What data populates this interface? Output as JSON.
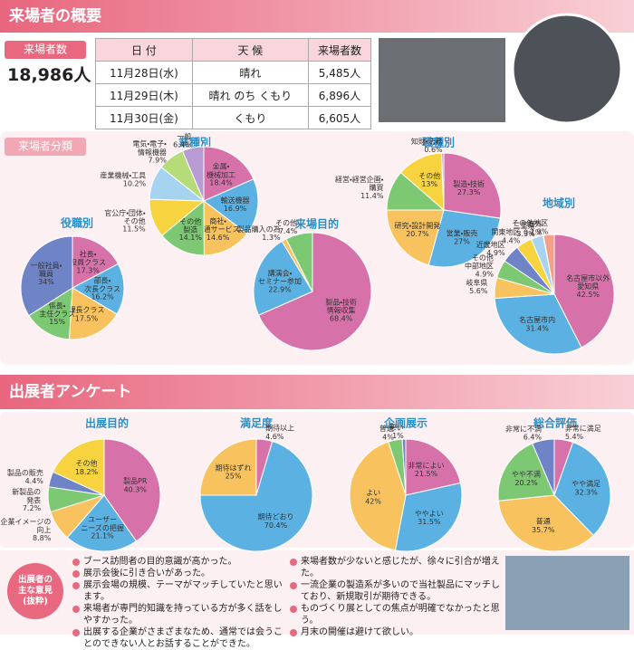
{
  "sections": {
    "overview_title": "来場者の概要",
    "visitor_count_label": "来場者数",
    "visitor_count": "18,986人",
    "classification_label": "来場者分類",
    "survey_title": "出展者アンケート",
    "opinions_label": "出展者の\n主な意見\n(抜粋)"
  },
  "table": {
    "header": [
      "日 付",
      "天 候",
      "来場者数"
    ],
    "rows": [
      [
        "11月28日(水)",
        "晴れ",
        "5,485人"
      ],
      [
        "11月29日(木)",
        "晴れ のち くもり",
        "6,896人"
      ],
      [
        "11月30日(金)",
        "くもり",
        "6,605人"
      ]
    ]
  },
  "chart_data": [
    {
      "type": "pie",
      "title": "業種別",
      "categories": [
        "金属・\n機械加工",
        "輸送機器",
        "商社・\n流通サービス",
        "その他\n製造",
        "官公庁・団体・\nその他",
        "産業機械・工具",
        "電気・電子・\n情報機器",
        "一般"
      ],
      "values": [
        18.4,
        16.9,
        14.6,
        14.1,
        11.5,
        10.2,
        7.9,
        6.4
      ],
      "value_labels": [
        "18.4%",
        "16.9%",
        "14.6%",
        "14.1%",
        "11.5%",
        "10.2%",
        "7.9%",
        "6.4%"
      ],
      "colors": [
        "#d672a9",
        "#5cb1e3",
        "#f8c25e",
        "#7cc873",
        "#f6d33f",
        "#a6d4f0",
        "#b6dc7a",
        "#b89ad4"
      ]
    },
    {
      "type": "pie",
      "title": "役職別",
      "categories": [
        "社長・\n役員クラス",
        "部長・\n次長クラス",
        "課長クラス",
        "係長・\n主任クラス",
        "一般社員・\n職員"
      ],
      "values": [
        17.3,
        16.2,
        17.5,
        15,
        34
      ],
      "value_labels": [
        "17.3%",
        "16.2%",
        "17.5%",
        "15%",
        "34%"
      ],
      "colors": [
        "#d672a9",
        "#5cb1e3",
        "#f8c25e",
        "#7cc873",
        "#6f84c6"
      ]
    },
    {
      "type": "pie",
      "title": "来場目的",
      "categories": [
        "製品・技術\n情報収集",
        "講演会・\nセミナー参加",
        "製品購入の為",
        "その他"
      ],
      "values": [
        68.4,
        22.9,
        1.3,
        7.4
      ],
      "value_labels": [
        "68.4%",
        "22.9%",
        "1.3%",
        "7.4%"
      ],
      "colors": [
        "#d672a9",
        "#5cb1e3",
        "#f8c25e",
        "#7cc873"
      ]
    },
    {
      "type": "pie",
      "title": "職種別",
      "categories": [
        "製造・技術",
        "営業・販売",
        "研究・設計開発",
        "経営・経営企画・\n購買",
        "その他",
        "知財・法務"
      ],
      "values": [
        27.3,
        27,
        20.7,
        11.4,
        13,
        0.6
      ],
      "value_labels": [
        "27.3%",
        "27%",
        "20.7%",
        "11.4%",
        "13%",
        "0.6%"
      ],
      "colors": [
        "#d672a9",
        "#5cb1e3",
        "#f8c25e",
        "#7cc873",
        "#f6d33f",
        "#b89ad4"
      ]
    },
    {
      "type": "pie",
      "title": "地域別",
      "categories": [
        "名古屋市以外\n愛知県",
        "名古屋市内",
        "岐阜県",
        "その他\n中部地区",
        "近畿地区",
        "関東地区",
        "三重県",
        "海外",
        "その他地区"
      ],
      "values": [
        42.5,
        31.4,
        5.6,
        4.9,
        4.9,
        4.4,
        3.3,
        0.1,
        2.9
      ],
      "value_labels": [
        "42.5%",
        "31.4%",
        "5.6%",
        "4.9%",
        "4.9%",
        "4.4%",
        "3.3%",
        "0.1%",
        "2.9%"
      ],
      "colors": [
        "#d672a9",
        "#5cb1e3",
        "#f8c25e",
        "#7cc873",
        "#6f84c6",
        "#f6d33f",
        "#a6d4f0",
        "#b89ad4",
        "#f3a08a"
      ]
    },
    {
      "type": "pie",
      "title": "出展目的",
      "categories": [
        "製品PR",
        "ユーザー\nニーズの把握",
        "企業イメージの\n向上",
        "新製品の\n発表",
        "製品の販売",
        "その他"
      ],
      "values": [
        40.3,
        21.1,
        8.8,
        7.2,
        4.4,
        18.2
      ],
      "value_labels": [
        "40.3%",
        "21.1%",
        "8.8%",
        "7.2%",
        "4.4%",
        "18.2%"
      ],
      "colors": [
        "#d672a9",
        "#5cb1e3",
        "#f8c25e",
        "#7cc873",
        "#6f84c6",
        "#f6d33f"
      ]
    },
    {
      "type": "pie",
      "title": "満足度",
      "categories": [
        "期待以上",
        "期待どおり",
        "期待はずれ"
      ],
      "values": [
        4.6,
        70.4,
        25
      ],
      "value_labels": [
        "4.6%",
        "70.4%",
        "25%"
      ],
      "colors": [
        "#d672a9",
        "#5cb1e3",
        "#f8c25e"
      ]
    },
    {
      "type": "pie",
      "title": "企画展示",
      "categories": [
        "非常によい",
        "ややよい",
        "よい",
        "普通",
        "悪い"
      ],
      "values": [
        21.5,
        31.5,
        42,
        4,
        1
      ],
      "value_labels": [
        "21.5%",
        "31.5%",
        "42%",
        "4%",
        "1%"
      ],
      "colors": [
        "#d672a9",
        "#5cb1e3",
        "#f8c25e",
        "#7cc873",
        "#6f84c6"
      ]
    },
    {
      "type": "pie",
      "title": "総合評価",
      "categories": [
        "非常に満足",
        "やや満足",
        "普通",
        "やや不満",
        "非常に不満"
      ],
      "values": [
        5.4,
        32.3,
        35.7,
        20.2,
        6.4
      ],
      "value_labels": [
        "5.4%",
        "32.3%",
        "35.7%",
        "20.2%",
        "6.4%"
      ],
      "colors": [
        "#d672a9",
        "#5cb1e3",
        "#f8c25e",
        "#7cc873",
        "#6f84c6"
      ]
    }
  ],
  "opinions": {
    "left": [
      "ブース訪問者の目的意識が高かった。",
      "展示会後に引き合いがあった。",
      "展示会場の規模、テーマがマッチしていたと思います。",
      "来場者が専門的知識を持っている方が多く話をしやすかった。",
      "出展する企業がさまざまなため、通常では会うことのできない人とお話することができた。"
    ],
    "right": [
      "来場者数が少ないと感じたが、徐々に引合が増えた。",
      "一流企業の製造系が多いので当社製品にマッチしており、新規取引が期待できる。",
      "ものづくり展としての焦点が明確でなかったと思う。",
      "月末の開催は避けて欲しい。"
    ]
  }
}
